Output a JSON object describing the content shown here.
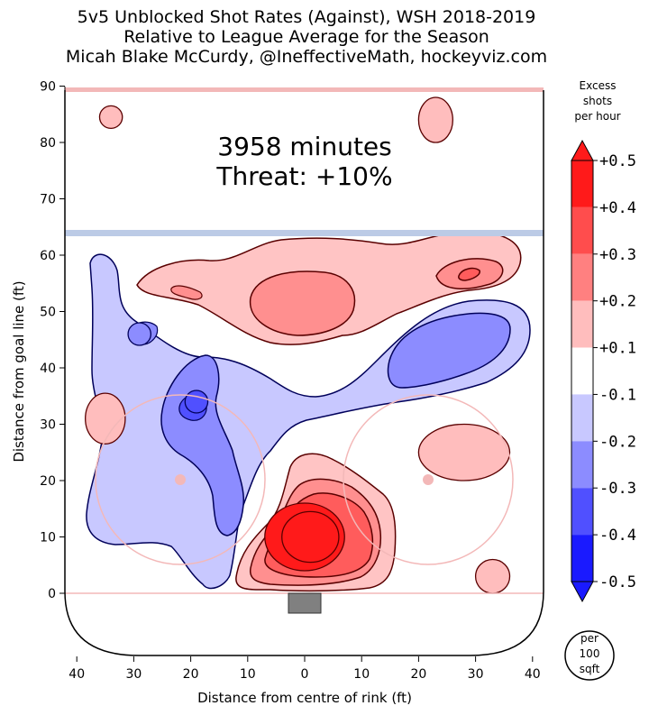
{
  "chart_data": {
    "type": "heatmap",
    "title": "5v5 Unblocked Shot Rates (Against), WSH 2018-2019",
    "subtitle": "Relative to League Average for the Season",
    "credit": "Micah Blake McCurdy, @IneffectiveMath, hockeyviz.com",
    "xlabel": "Distance from centre of rink (ft)",
    "ylabel": "Distance from goal line (ft)",
    "xlim": [
      -42,
      42
    ],
    "ylim": [
      -10.5,
      90
    ],
    "x_ticks": [
      "40",
      "30",
      "20",
      "10",
      "0",
      "10",
      "20",
      "30",
      "40"
    ],
    "x_tick_values": [
      -40,
      -30,
      -20,
      -10,
      0,
      10,
      20,
      30,
      40
    ],
    "y_ticks": [
      0,
      10,
      20,
      30,
      40,
      50,
      60,
      70,
      80,
      90
    ],
    "annotation": {
      "minutes": "3958 minutes",
      "threat": "Threat: +10%"
    },
    "colorbar": {
      "label": "Excess shots per hour",
      "label_lines": [
        "Excess",
        "shots",
        "per hour"
      ],
      "ticks": [
        "+0.5",
        "+0.4",
        "+0.3",
        "+0.2",
        "+0.1",
        "-0.1",
        "-0.2",
        "-0.3",
        "-0.4",
        "-0.5"
      ],
      "levels": [
        {
          "range": [
            0.4,
            0.5
          ],
          "color": "#ff1a1a"
        },
        {
          "range": [
            0.3,
            0.4
          ],
          "color": "#ff4d4d"
        },
        {
          "range": [
            0.2,
            0.3
          ],
          "color": "#ff8080"
        },
        {
          "range": [
            0.1,
            0.2
          ],
          "color": "#ffbdbd"
        },
        {
          "range": [
            -0.1,
            0.1
          ],
          "color": "#ffffff"
        },
        {
          "range": [
            -0.2,
            -0.1
          ],
          "color": "#c8c8ff"
        },
        {
          "range": [
            -0.3,
            -0.2
          ],
          "color": "#8c8cff"
        },
        {
          "range": [
            -0.4,
            -0.3
          ],
          "color": "#5050ff"
        },
        {
          "range": [
            -0.5,
            -0.4
          ],
          "color": "#1a1aff"
        }
      ]
    },
    "unit_badge": [
      "per",
      "100",
      "sqft"
    ],
    "regions": [
      {
        "level": 0.4,
        "shape": "ellipse",
        "cx": 0,
        "cy": 10,
        "rx": 7,
        "ry": 6
      },
      {
        "level": 0.5,
        "shape": "ellipse",
        "cx": 1,
        "cy": 10,
        "rx": 5,
        "ry": 4.5
      },
      {
        "level": 0.15,
        "shape": "ellipse",
        "cx": 23,
        "cy": 84,
        "rx": 3,
        "ry": 4
      },
      {
        "level": 0.15,
        "shape": "ellipse",
        "cx": -34,
        "cy": 84.5,
        "rx": 2,
        "ry": 2
      },
      {
        "level": 0.15,
        "shape": "ellipse",
        "cx": -35,
        "cy": 31,
        "rx": 3.5,
        "ry": 4.5
      },
      {
        "level": 0.15,
        "shape": "ellipse",
        "cx": 28,
        "cy": 25,
        "rx": 8,
        "ry": 5
      },
      {
        "level": 0.15,
        "shape": "ellipse",
        "cx": 33,
        "cy": 3,
        "rx": 3,
        "ry": 3
      },
      {
        "level": -0.25,
        "shape": "ellipse",
        "cx": -29,
        "cy": 46,
        "rx": 2,
        "ry": 2
      },
      {
        "level": -0.35,
        "shape": "ellipse",
        "cx": -19,
        "cy": 34,
        "rx": 2,
        "ry": 2
      }
    ]
  }
}
